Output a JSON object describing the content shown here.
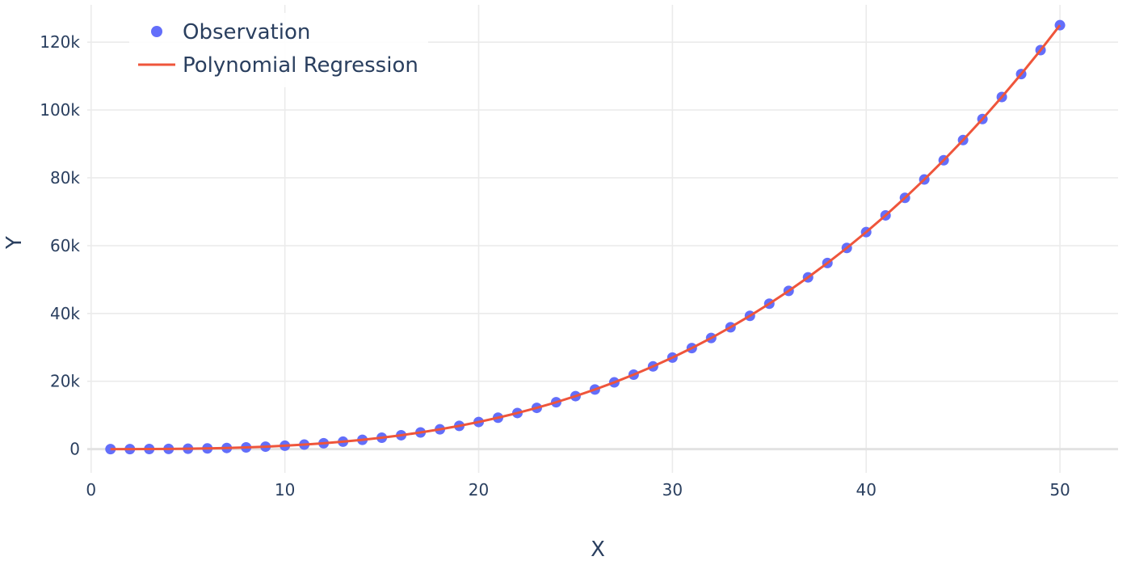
{
  "chart_data": {
    "type": "scatter",
    "title": "",
    "xlabel": "X",
    "ylabel": "Y",
    "xlim": [
      -0.2,
      53
    ],
    "ylim": [
      -7000,
      131000
    ],
    "x_ticks": [
      0,
      10,
      20,
      30,
      40,
      50
    ],
    "x_tick_labels": [
      "0",
      "10",
      "20",
      "30",
      "40",
      "50"
    ],
    "y_ticks": [
      0,
      20000,
      40000,
      60000,
      80000,
      100000,
      120000
    ],
    "y_tick_labels": [
      "0",
      "20k",
      "40k",
      "60k",
      "80k",
      "100k",
      "120k"
    ],
    "grid": true,
    "legend_position": "top-left",
    "series": [
      {
        "name": "Observation",
        "mode": "markers",
        "color": "#636efa",
        "x": [
          1,
          2,
          3,
          4,
          5,
          6,
          7,
          8,
          9,
          10,
          11,
          12,
          13,
          14,
          15,
          16,
          17,
          18,
          19,
          20,
          21,
          22,
          23,
          24,
          25,
          26,
          27,
          28,
          29,
          30,
          31,
          32,
          33,
          34,
          35,
          36,
          37,
          38,
          39,
          40,
          41,
          42,
          43,
          44,
          45,
          46,
          47,
          48,
          49,
          50
        ],
        "y": [
          1,
          8,
          27,
          64,
          125,
          216,
          343,
          512,
          729,
          1000,
          1331,
          1728,
          2197,
          2744,
          3375,
          4096,
          4913,
          5832,
          6859,
          8000,
          9261,
          10648,
          12167,
          13824,
          15625,
          17576,
          19683,
          21952,
          24389,
          27000,
          29791,
          32768,
          35937,
          39304,
          42875,
          46656,
          50653,
          54872,
          59319,
          64000,
          68921,
          74088,
          79507,
          85184,
          91125,
          97336,
          103823,
          110592,
          117649,
          125000
        ]
      },
      {
        "name": "Polynomial Regression",
        "mode": "lines",
        "color": "#ef553b",
        "x": [
          1,
          2,
          3,
          4,
          5,
          6,
          7,
          8,
          9,
          10,
          11,
          12,
          13,
          14,
          15,
          16,
          17,
          18,
          19,
          20,
          21,
          22,
          23,
          24,
          25,
          26,
          27,
          28,
          29,
          30,
          31,
          32,
          33,
          34,
          35,
          36,
          37,
          38,
          39,
          40,
          41,
          42,
          43,
          44,
          45,
          46,
          47,
          48,
          49,
          50
        ],
        "y": [
          1,
          8,
          27,
          64,
          125,
          216,
          343,
          512,
          729,
          1000,
          1331,
          1728,
          2197,
          2744,
          3375,
          4096,
          4913,
          5832,
          6859,
          8000,
          9261,
          10648,
          12167,
          13824,
          15625,
          17576,
          19683,
          21952,
          24389,
          27000,
          29791,
          32768,
          35937,
          39304,
          42875,
          46656,
          50653,
          54872,
          59319,
          64000,
          68921,
          74088,
          79507,
          85184,
          91125,
          97336,
          103823,
          110592,
          117649,
          125000
        ]
      }
    ]
  }
}
